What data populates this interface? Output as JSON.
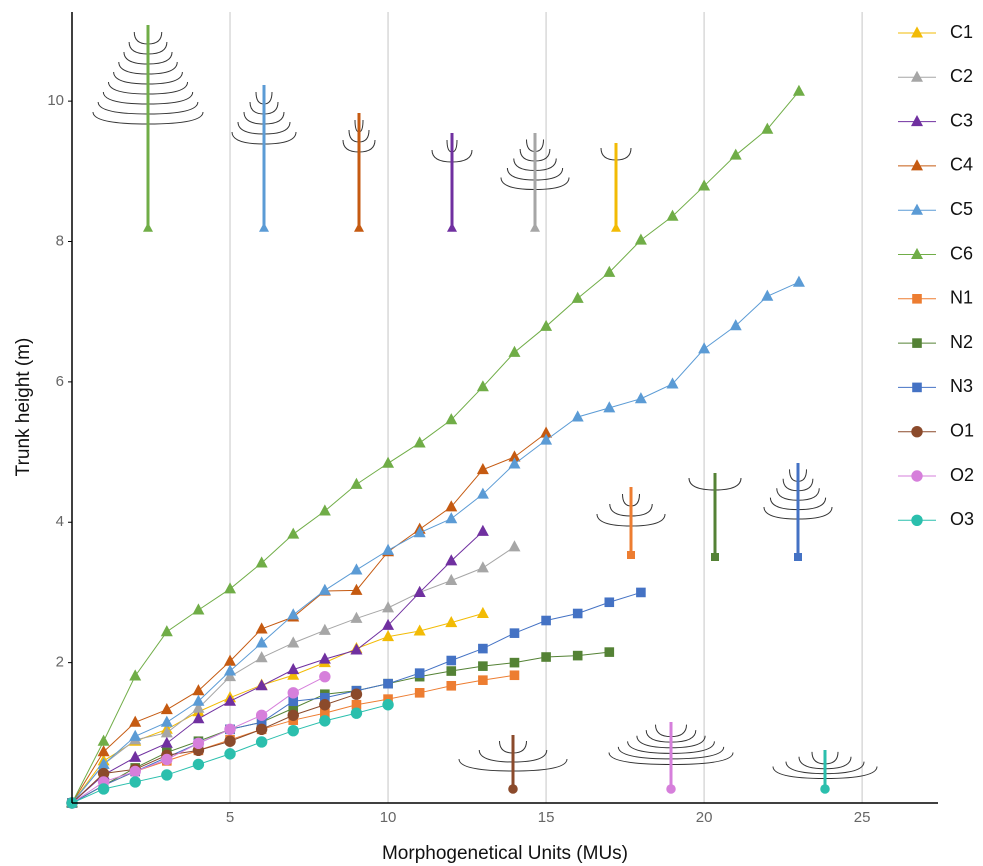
{
  "chart_data": {
    "type": "line",
    "x_label": "Morphogenetical Units (MUs)",
    "y_label": "Trunk height (m)",
    "xlim": [
      0,
      27.4
    ],
    "ylim": [
      0,
      11.27
    ],
    "xticks": [
      5,
      10,
      15,
      20,
      25
    ],
    "yticks": [
      2,
      4,
      6,
      8,
      10
    ],
    "grid": "x",
    "legend": "right",
    "series": [
      {
        "name": "C1",
        "color": "#f2bb05",
        "marker": "triangle",
        "x": [
          0,
          1,
          2,
          3,
          4,
          5,
          6,
          7,
          8,
          9,
          10,
          11,
          12,
          13
        ],
        "values": [
          0,
          0.6,
          0.88,
          1.05,
          1.3,
          1.5,
          1.68,
          1.82,
          2.0,
          2.2,
          2.37,
          2.45,
          2.57,
          2.7
        ]
      },
      {
        "name": "C2",
        "color": "#a6a6a6",
        "marker": "triangle",
        "x": [
          0,
          1,
          2,
          3,
          4,
          5,
          6,
          7,
          8,
          9,
          10,
          11,
          12,
          13,
          14
        ],
        "values": [
          0,
          0.55,
          0.9,
          1.0,
          1.35,
          1.8,
          2.07,
          2.28,
          2.46,
          2.63,
          2.78,
          3.0,
          3.17,
          3.35,
          3.65
        ]
      },
      {
        "name": "C3",
        "color": "#7030a0",
        "marker": "triangle",
        "x": [
          0,
          1,
          2,
          3,
          4,
          5,
          6,
          7,
          8,
          9,
          10,
          11,
          12,
          13
        ],
        "values": [
          0,
          0.4,
          0.65,
          0.85,
          1.2,
          1.45,
          1.67,
          1.9,
          2.05,
          2.18,
          2.53,
          3.0,
          3.45,
          3.87
        ]
      },
      {
        "name": "C4",
        "color": "#c55a11",
        "marker": "triangle",
        "x": [
          0,
          1,
          2,
          3,
          4,
          5,
          6,
          7,
          8,
          9,
          10,
          11,
          12,
          13,
          14,
          15
        ],
        "values": [
          0,
          0.73,
          1.15,
          1.33,
          1.6,
          2.02,
          2.48,
          2.65,
          3.02,
          3.03,
          3.58,
          3.9,
          4.22,
          4.75,
          4.93,
          5.27
        ]
      },
      {
        "name": "C5",
        "color": "#5b9bd5",
        "marker": "triangle",
        "x": [
          0,
          1,
          2,
          3,
          4,
          5,
          6,
          7,
          8,
          9,
          10,
          11,
          12,
          13,
          14,
          15,
          16,
          17,
          18,
          19,
          20,
          21,
          22,
          23
        ],
        "values": [
          0,
          0.55,
          0.95,
          1.15,
          1.45,
          1.88,
          2.28,
          2.68,
          3.03,
          3.32,
          3.6,
          3.85,
          4.05,
          4.4,
          4.83,
          5.17,
          5.5,
          5.63,
          5.76,
          5.97,
          6.47,
          6.8,
          7.22,
          7.42
        ]
      },
      {
        "name": "C6",
        "color": "#70ad47",
        "marker": "triangle",
        "x": [
          0,
          1,
          2,
          3,
          4,
          5,
          6,
          7,
          8,
          9,
          10,
          11,
          12,
          13,
          14,
          15,
          16,
          17,
          18,
          19,
          20,
          21,
          22,
          23
        ],
        "values": [
          0,
          0.88,
          1.81,
          2.44,
          2.75,
          3.05,
          3.42,
          3.83,
          4.16,
          4.54,
          4.84,
          5.13,
          5.46,
          5.93,
          6.42,
          6.79,
          7.19,
          7.56,
          8.02,
          8.36,
          8.79,
          9.23,
          9.6,
          10.14
        ]
      },
      {
        "name": "N1",
        "color": "#ed7d31",
        "marker": "square",
        "x": [
          0,
          1,
          2,
          3,
          4,
          5,
          6,
          7,
          8,
          9,
          10,
          11,
          12,
          13,
          14
        ],
        "values": [
          0,
          0.25,
          0.45,
          0.6,
          0.75,
          0.9,
          1.05,
          1.18,
          1.28,
          1.4,
          1.48,
          1.57,
          1.67,
          1.75,
          1.82
        ]
      },
      {
        "name": "N2",
        "color": "#548235",
        "marker": "square",
        "x": [
          0,
          1,
          2,
          3,
          4,
          5,
          6,
          7,
          8,
          9,
          10,
          11,
          12,
          13,
          14,
          15,
          16,
          17
        ],
        "values": [
          0,
          0.25,
          0.5,
          0.72,
          0.88,
          1.05,
          1.15,
          1.35,
          1.55,
          1.6,
          1.7,
          1.8,
          1.88,
          1.95,
          2.0,
          2.08,
          2.1,
          2.15
        ]
      },
      {
        "name": "N3",
        "color": "#4472c4",
        "marker": "square",
        "x": [
          0,
          1,
          2,
          3,
          4,
          5,
          6,
          7,
          8,
          9,
          10,
          11,
          12,
          13,
          14,
          15,
          16,
          17,
          18
        ],
        "values": [
          0,
          0.25,
          0.45,
          0.65,
          0.85,
          1.05,
          1.15,
          1.45,
          1.5,
          1.6,
          1.7,
          1.85,
          2.03,
          2.2,
          2.42,
          2.6,
          2.7,
          2.86,
          3.0
        ]
      },
      {
        "name": "O1",
        "color": "#8b4a2b",
        "marker": "circle",
        "x": [
          0,
          1,
          2,
          3,
          4,
          5,
          6,
          7,
          8,
          9
        ],
        "values": [
          0,
          0.42,
          0.48,
          0.68,
          0.75,
          0.88,
          1.05,
          1.25,
          1.4,
          1.55
        ]
      },
      {
        "name": "O2",
        "color": "#d67fdb",
        "marker": "circle",
        "x": [
          0,
          1,
          2,
          3,
          4,
          5,
          6,
          7,
          8
        ],
        "values": [
          0,
          0.3,
          0.45,
          0.62,
          0.85,
          1.05,
          1.25,
          1.57,
          1.8
        ]
      },
      {
        "name": "O3",
        "color": "#2bbfad",
        "marker": "circle",
        "x": [
          0,
          1,
          2,
          3,
          4,
          5,
          6,
          7,
          8,
          9,
          10
        ],
        "values": [
          0,
          0.2,
          0.3,
          0.4,
          0.55,
          0.7,
          0.87,
          1.03,
          1.17,
          1.28,
          1.4
        ]
      }
    ]
  }
}
